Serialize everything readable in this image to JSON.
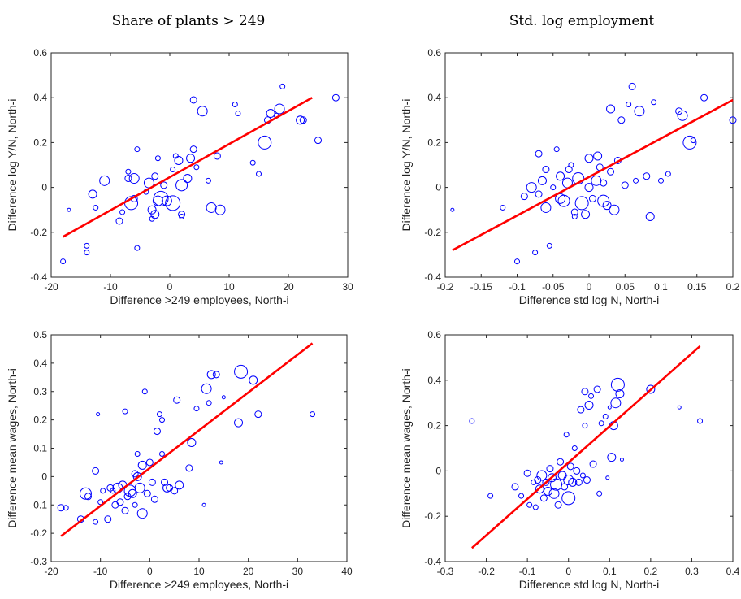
{
  "column_titles": [
    "Share of plants > 249",
    "Std. log employment"
  ],
  "colors": {
    "points": "#0000ff",
    "fit_line": "#ff0000",
    "axes": "#262626"
  },
  "chart_data": [
    {
      "type": "scatter",
      "title": "",
      "xlabel": "Difference >249 employees, North-i",
      "ylabel": "Difference log Y/N, North-i",
      "xlim": [
        -20,
        30
      ],
      "ylim": [
        -0.4,
        0.6
      ],
      "xticks": [
        -20,
        -10,
        0,
        10,
        20,
        30
      ],
      "yticks": [
        -0.4,
        -0.2,
        0,
        0.2,
        0.4,
        0.6
      ],
      "xtick_labels": [
        "-20",
        "-10",
        "0",
        "10",
        "20",
        "30"
      ],
      "ytick_labels": [
        "-0.4",
        "-0.2",
        "0",
        "0.2",
        "0.4",
        "0.6"
      ],
      "fit_line": [
        [
          -18,
          -0.22
        ],
        [
          24,
          0.4
        ]
      ],
      "points": [
        [
          -18.0,
          -0.33,
          3
        ],
        [
          -17.0,
          -0.1,
          2
        ],
        [
          -14.0,
          -0.26,
          3
        ],
        [
          -14.0,
          -0.29,
          3
        ],
        [
          -13.0,
          -0.03,
          5
        ],
        [
          -12.5,
          -0.09,
          3
        ],
        [
          -11.0,
          0.03,
          6
        ],
        [
          -8.5,
          -0.15,
          4
        ],
        [
          -8.0,
          -0.11,
          3
        ],
        [
          -7.0,
          0.04,
          4
        ],
        [
          -7.0,
          0.07,
          3
        ],
        [
          -6.5,
          -0.07,
          8
        ],
        [
          -6.0,
          -0.05,
          4
        ],
        [
          -6.0,
          0.04,
          6
        ],
        [
          -5.5,
          0.17,
          3
        ],
        [
          -5.5,
          -0.27,
          3
        ],
        [
          -4.0,
          -0.02,
          3
        ],
        [
          -3.5,
          0.02,
          6
        ],
        [
          -3.0,
          -0.1,
          5
        ],
        [
          -3.0,
          -0.14,
          3
        ],
        [
          -2.5,
          -0.12,
          5
        ],
        [
          -2.5,
          0.05,
          4
        ],
        [
          -2.0,
          -0.06,
          6
        ],
        [
          -2.0,
          0.13,
          3
        ],
        [
          -1.5,
          -0.05,
          9
        ],
        [
          -1.0,
          0.01,
          4
        ],
        [
          -0.5,
          -0.06,
          6
        ],
        [
          0.5,
          -0.07,
          9
        ],
        [
          0.5,
          0.08,
          3
        ],
        [
          1.0,
          0.14,
          3
        ],
        [
          1.5,
          0.12,
          5
        ],
        [
          2.0,
          0.01,
          7
        ],
        [
          2.0,
          -0.12,
          4
        ],
        [
          2.0,
          -0.13,
          3
        ],
        [
          3.0,
          0.04,
          5
        ],
        [
          3.5,
          0.13,
          5
        ],
        [
          4.0,
          0.17,
          4
        ],
        [
          4.0,
          0.39,
          4
        ],
        [
          4.5,
          0.09,
          3
        ],
        [
          5.5,
          0.34,
          6
        ],
        [
          6.5,
          0.03,
          3
        ],
        [
          7.0,
          -0.09,
          6
        ],
        [
          8.0,
          0.14,
          4
        ],
        [
          8.5,
          -0.1,
          6
        ],
        [
          11.0,
          0.37,
          3
        ],
        [
          11.5,
          0.33,
          3
        ],
        [
          14.0,
          0.11,
          3
        ],
        [
          15.0,
          0.06,
          3
        ],
        [
          16.0,
          0.2,
          8
        ],
        [
          16.5,
          0.3,
          4
        ],
        [
          17.0,
          0.33,
          5
        ],
        [
          18.0,
          0.32,
          3
        ],
        [
          18.5,
          0.35,
          6
        ],
        [
          19.0,
          0.45,
          3
        ],
        [
          22.0,
          0.3,
          5
        ],
        [
          22.5,
          0.3,
          4
        ],
        [
          25.0,
          0.21,
          4
        ],
        [
          28.0,
          0.4,
          4
        ]
      ]
    },
    {
      "type": "scatter",
      "title": "",
      "xlabel": "Difference std log N, North-i",
      "ylabel": "Difference log Y/N, North-i",
      "xlim": [
        -0.2,
        0.2
      ],
      "ylim": [
        -0.4,
        0.6
      ],
      "xticks": [
        -0.2,
        -0.15,
        -0.1,
        -0.05,
        0,
        0.05,
        0.1,
        0.15,
        0.2
      ],
      "yticks": [
        -0.4,
        -0.2,
        0,
        0.2,
        0.4,
        0.6
      ],
      "xtick_labels": [
        "-0.2",
        "-0.15",
        "-0.1",
        "-0.05",
        "0",
        "0.05",
        "0.1",
        "0.15",
        "0.2"
      ],
      "ytick_labels": [
        "-0.4",
        "-0.2",
        "0",
        "0.2",
        "0.4",
        "0.6"
      ],
      "fit_line": [
        [
          -0.19,
          -0.28
        ],
        [
          0.2,
          0.39
        ]
      ],
      "points": [
        [
          -0.19,
          -0.1,
          2
        ],
        [
          -0.12,
          -0.09,
          3
        ],
        [
          -0.1,
          -0.33,
          3
        ],
        [
          -0.09,
          -0.04,
          4
        ],
        [
          -0.08,
          0.0,
          6
        ],
        [
          -0.075,
          -0.29,
          3
        ],
        [
          -0.07,
          0.15,
          4
        ],
        [
          -0.07,
          -0.03,
          4
        ],
        [
          -0.065,
          0.03,
          5
        ],
        [
          -0.06,
          0.08,
          4
        ],
        [
          -0.06,
          -0.09,
          6
        ],
        [
          -0.055,
          -0.26,
          3
        ],
        [
          -0.05,
          0.0,
          3
        ],
        [
          -0.045,
          0.17,
          3
        ],
        [
          -0.04,
          -0.05,
          6
        ],
        [
          -0.04,
          0.05,
          5
        ],
        [
          -0.035,
          -0.06,
          7
        ],
        [
          -0.03,
          0.02,
          6
        ],
        [
          -0.028,
          0.08,
          4
        ],
        [
          -0.025,
          0.1,
          3
        ],
        [
          -0.02,
          -0.11,
          4
        ],
        [
          -0.02,
          -0.13,
          3
        ],
        [
          -0.015,
          0.04,
          7
        ],
        [
          -0.01,
          -0.07,
          8
        ],
        [
          -0.005,
          -0.12,
          5
        ],
        [
          0.0,
          0.0,
          5
        ],
        [
          0.0,
          0.13,
          5
        ],
        [
          0.005,
          -0.05,
          4
        ],
        [
          0.01,
          0.03,
          6
        ],
        [
          0.012,
          0.14,
          5
        ],
        [
          0.015,
          0.09,
          4
        ],
        [
          0.02,
          -0.06,
          7
        ],
        [
          0.02,
          0.02,
          4
        ],
        [
          0.025,
          -0.08,
          5
        ],
        [
          0.03,
          0.35,
          5
        ],
        [
          0.03,
          0.07,
          4
        ],
        [
          0.035,
          -0.1,
          6
        ],
        [
          0.04,
          0.12,
          4
        ],
        [
          0.045,
          0.3,
          4
        ],
        [
          0.05,
          0.01,
          4
        ],
        [
          0.055,
          0.37,
          3
        ],
        [
          0.06,
          0.45,
          4
        ],
        [
          0.065,
          0.03,
          3
        ],
        [
          0.07,
          0.34,
          6
        ],
        [
          0.08,
          0.05,
          4
        ],
        [
          0.085,
          -0.13,
          5
        ],
        [
          0.09,
          0.38,
          3
        ],
        [
          0.1,
          0.03,
          3
        ],
        [
          0.11,
          0.06,
          3
        ],
        [
          0.125,
          0.34,
          4
        ],
        [
          0.13,
          0.32,
          6
        ],
        [
          0.14,
          0.2,
          8
        ],
        [
          0.145,
          0.21,
          3
        ],
        [
          0.16,
          0.4,
          4
        ],
        [
          0.2,
          0.3,
          4
        ]
      ]
    },
    {
      "type": "scatter",
      "title": "",
      "xlabel": "Difference >249 employees, North-i",
      "ylabel": "Difference mean wages, North-i",
      "xlim": [
        -20,
        40
      ],
      "ylim": [
        -0.3,
        0.5
      ],
      "xticks": [
        -20,
        -10,
        0,
        10,
        20,
        30,
        40
      ],
      "yticks": [
        -0.3,
        -0.2,
        -0.1,
        0,
        0.1,
        0.2,
        0.3,
        0.4,
        0.5
      ],
      "xtick_labels": [
        "-20",
        "-10",
        "0",
        "10",
        "20",
        "30",
        "40"
      ],
      "ytick_labels": [
        "-0.3",
        "-0.2",
        "-0.1",
        "0",
        "0.1",
        "0.2",
        "0.3",
        "0.4",
        "0.5"
      ],
      "fit_line": [
        [
          -18,
          -0.21
        ],
        [
          33,
          0.47
        ]
      ],
      "points": [
        [
          -18.0,
          -0.11,
          4
        ],
        [
          -17.0,
          -0.11,
          3
        ],
        [
          -14.0,
          -0.15,
          4
        ],
        [
          -13.0,
          -0.06,
          7
        ],
        [
          -12.5,
          -0.07,
          4
        ],
        [
          -11.0,
          0.02,
          4
        ],
        [
          -11.0,
          -0.16,
          3
        ],
        [
          -10.5,
          0.22,
          2
        ],
        [
          -10.0,
          -0.09,
          3
        ],
        [
          -9.5,
          -0.05,
          3
        ],
        [
          -8.5,
          -0.15,
          4
        ],
        [
          -8.0,
          -0.04,
          4
        ],
        [
          -7.5,
          -0.05,
          3
        ],
        [
          -7.0,
          -0.1,
          4
        ],
        [
          -6.5,
          -0.04,
          6
        ],
        [
          -6.0,
          -0.09,
          4
        ],
        [
          -5.5,
          -0.03,
          5
        ],
        [
          -5.0,
          0.23,
          3
        ],
        [
          -5.0,
          -0.12,
          4
        ],
        [
          -4.5,
          -0.07,
          4
        ],
        [
          -4.0,
          -0.05,
          7
        ],
        [
          -3.5,
          -0.06,
          5
        ],
        [
          -3.0,
          0.01,
          4
        ],
        [
          -3.0,
          -0.1,
          3
        ],
        [
          -2.5,
          0.0,
          5
        ],
        [
          -2.5,
          0.08,
          3
        ],
        [
          -2.0,
          -0.04,
          6
        ],
        [
          -1.5,
          -0.13,
          6
        ],
        [
          -1.5,
          0.04,
          5
        ],
        [
          -1.0,
          0.3,
          3
        ],
        [
          -0.5,
          -0.06,
          4
        ],
        [
          0.0,
          0.05,
          4
        ],
        [
          0.5,
          -0.02,
          4
        ],
        [
          1.0,
          -0.08,
          4
        ],
        [
          1.5,
          0.16,
          4
        ],
        [
          2.0,
          0.22,
          3
        ],
        [
          2.5,
          0.08,
          3
        ],
        [
          2.5,
          0.2,
          3
        ],
        [
          3.0,
          -0.02,
          4
        ],
        [
          3.5,
          -0.04,
          5
        ],
        [
          4.0,
          -0.04,
          4
        ],
        [
          5.0,
          -0.05,
          4
        ],
        [
          5.5,
          0.27,
          4
        ],
        [
          6.0,
          -0.03,
          5
        ],
        [
          8.0,
          0.03,
          4
        ],
        [
          8.5,
          0.12,
          5
        ],
        [
          9.5,
          0.24,
          3
        ],
        [
          11.0,
          -0.1,
          2
        ],
        [
          11.5,
          0.31,
          6
        ],
        [
          12.0,
          0.26,
          3
        ],
        [
          12.5,
          0.36,
          5
        ],
        [
          13.5,
          0.36,
          4
        ],
        [
          14.5,
          0.05,
          2
        ],
        [
          15.0,
          0.28,
          2
        ],
        [
          18.0,
          0.19,
          5
        ],
        [
          18.5,
          0.37,
          8
        ],
        [
          21.0,
          0.34,
          5
        ],
        [
          22.0,
          0.22,
          4
        ],
        [
          33.0,
          0.22,
          3
        ]
      ]
    },
    {
      "type": "scatter",
      "title": "",
      "xlabel": "Difference std log N, North-i",
      "ylabel": "Difference mean wages, North-i",
      "xlim": [
        -0.3,
        0.4
      ],
      "ylim": [
        -0.4,
        0.6
      ],
      "xticks": [
        -0.3,
        -0.2,
        -0.1,
        0,
        0.1,
        0.2,
        0.3,
        0.4
      ],
      "yticks": [
        -0.4,
        -0.2,
        0,
        0.2,
        0.4,
        0.6
      ],
      "xtick_labels": [
        "-0.3",
        "-0.2",
        "-0.1",
        "0",
        "0.1",
        "0.2",
        "0.3",
        "0.4"
      ],
      "ytick_labels": [
        "-0.4",
        "-0.2",
        "0",
        "0.2",
        "0.4",
        "0.6"
      ],
      "fit_line": [
        [
          -0.235,
          -0.34
        ],
        [
          0.32,
          0.55
        ]
      ],
      "points": [
        [
          -0.235,
          0.22,
          3
        ],
        [
          -0.19,
          -0.11,
          3
        ],
        [
          -0.13,
          -0.07,
          4
        ],
        [
          -0.115,
          -0.11,
          3
        ],
        [
          -0.1,
          -0.01,
          4
        ],
        [
          -0.095,
          -0.15,
          3
        ],
        [
          -0.085,
          -0.05,
          3
        ],
        [
          -0.08,
          -0.16,
          3
        ],
        [
          -0.075,
          -0.04,
          4
        ],
        [
          -0.07,
          -0.08,
          5
        ],
        [
          -0.065,
          -0.02,
          6
        ],
        [
          -0.06,
          -0.12,
          4
        ],
        [
          -0.055,
          -0.05,
          4
        ],
        [
          -0.05,
          -0.09,
          5
        ],
        [
          -0.045,
          0.01,
          4
        ],
        [
          -0.04,
          -0.03,
          5
        ],
        [
          -0.035,
          -0.1,
          6
        ],
        [
          -0.03,
          -0.06,
          7
        ],
        [
          -0.025,
          -0.15,
          4
        ],
        [
          -0.02,
          0.04,
          4
        ],
        [
          -0.015,
          -0.02,
          5
        ],
        [
          -0.01,
          -0.07,
          4
        ],
        [
          -0.005,
          0.16,
          3
        ],
        [
          0.0,
          -0.04,
          6
        ],
        [
          0.0,
          -0.12,
          8
        ],
        [
          0.005,
          0.02,
          4
        ],
        [
          0.01,
          -0.05,
          5
        ],
        [
          0.015,
          0.1,
          3
        ],
        [
          0.02,
          0.0,
          4
        ],
        [
          0.025,
          -0.05,
          4
        ],
        [
          0.03,
          0.27,
          4
        ],
        [
          0.035,
          -0.02,
          3
        ],
        [
          0.04,
          0.35,
          4
        ],
        [
          0.04,
          0.2,
          3
        ],
        [
          0.045,
          -0.04,
          4
        ],
        [
          0.05,
          0.29,
          5
        ],
        [
          0.055,
          0.33,
          3
        ],
        [
          0.06,
          0.03,
          4
        ],
        [
          0.07,
          0.36,
          4
        ],
        [
          0.075,
          -0.1,
          3
        ],
        [
          0.08,
          0.21,
          3
        ],
        [
          0.09,
          0.24,
          3
        ],
        [
          0.095,
          -0.03,
          2
        ],
        [
          0.1,
          0.28,
          2
        ],
        [
          0.105,
          0.06,
          5
        ],
        [
          0.11,
          0.2,
          5
        ],
        [
          0.115,
          0.3,
          6
        ],
        [
          0.12,
          0.38,
          8
        ],
        [
          0.125,
          0.34,
          5
        ],
        [
          0.13,
          0.05,
          2
        ],
        [
          0.2,
          0.36,
          5
        ],
        [
          0.27,
          0.28,
          2
        ],
        [
          0.32,
          0.22,
          3
        ]
      ]
    }
  ]
}
